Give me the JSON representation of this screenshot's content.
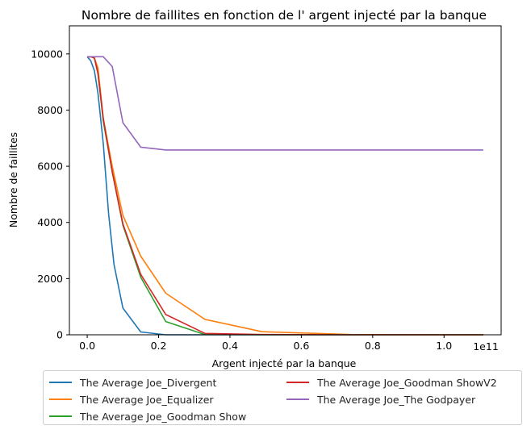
{
  "chart_data": {
    "type": "line",
    "title": "Nombre de faillites en fonction de l' argent injecté par la banque",
    "xlabel": "Argent injecté par la banque",
    "ylabel": "Nombre de faillites",
    "x_offset_label": "1e11",
    "xlim": [
      -0.05,
      1.16
    ],
    "ylim": [
      0,
      11000
    ],
    "x_ticks": [
      0.0,
      0.2,
      0.4,
      0.6,
      0.8,
      1.0
    ],
    "x_tick_labels": [
      "0.0",
      "0.2",
      "0.4",
      "0.6",
      "0.8",
      "1.0"
    ],
    "y_ticks": [
      0,
      2000,
      4000,
      6000,
      8000,
      10000
    ],
    "y_tick_labels": [
      "0",
      "2000",
      "4000",
      "6000",
      "8000",
      "10000"
    ],
    "grid": false,
    "legend_position": "below",
    "series": [
      {
        "name": "The Average Joe_Divergent",
        "color": "#1f77b4",
        "points": [
          [
            0,
            9900
          ],
          [
            0.01,
            9750
          ],
          [
            0.02,
            9400
          ],
          [
            0.03,
            8600
          ],
          [
            0.045,
            6800
          ],
          [
            0.06,
            4300
          ],
          [
            0.075,
            2500
          ],
          [
            0.1,
            950
          ],
          [
            0.15,
            100
          ],
          [
            0.22,
            0
          ],
          [
            0.33,
            0
          ],
          [
            0.49,
            0
          ],
          [
            0.74,
            0
          ],
          [
            1.11,
            0
          ]
        ]
      },
      {
        "name": "The Average Joe_Equalizer",
        "color": "#ff7f0e",
        "points": [
          [
            0,
            9900
          ],
          [
            0.01,
            9900
          ],
          [
            0.02,
            9850
          ],
          [
            0.03,
            9500
          ],
          [
            0.045,
            7700
          ],
          [
            0.07,
            6000
          ],
          [
            0.1,
            4250
          ],
          [
            0.15,
            2800
          ],
          [
            0.22,
            1480
          ],
          [
            0.33,
            550
          ],
          [
            0.49,
            110
          ],
          [
            0.74,
            10
          ],
          [
            1.11,
            0
          ]
        ]
      },
      {
        "name": "The Average Joe_Goodman Show",
        "color": "#2ca02c",
        "points": [
          [
            0,
            9900
          ],
          [
            0.01,
            9900
          ],
          [
            0.02,
            9850
          ],
          [
            0.03,
            9300
          ],
          [
            0.045,
            7600
          ],
          [
            0.07,
            5800
          ],
          [
            0.1,
            3900
          ],
          [
            0.15,
            2050
          ],
          [
            0.22,
            470
          ],
          [
            0.33,
            10
          ],
          [
            0.49,
            0
          ],
          [
            0.74,
            0
          ],
          [
            1.11,
            0
          ]
        ]
      },
      {
        "name": "The Average Joe_Goodman ShowV2",
        "color": "#d62728",
        "points": [
          [
            0,
            9900
          ],
          [
            0.01,
            9900
          ],
          [
            0.02,
            9850
          ],
          [
            0.03,
            9300
          ],
          [
            0.045,
            7700
          ],
          [
            0.07,
            5800
          ],
          [
            0.1,
            3950
          ],
          [
            0.15,
            2150
          ],
          [
            0.22,
            720
          ],
          [
            0.33,
            50
          ],
          [
            0.49,
            10
          ],
          [
            0.74,
            0
          ],
          [
            1.11,
            0
          ]
        ]
      },
      {
        "name": "The Average Joe_The Godpayer",
        "color": "#9467bd",
        "points": [
          [
            0,
            9900
          ],
          [
            0.01,
            9900
          ],
          [
            0.03,
            9900
          ],
          [
            0.045,
            9900
          ],
          [
            0.07,
            9550
          ],
          [
            0.1,
            7550
          ],
          [
            0.15,
            6680
          ],
          [
            0.22,
            6580
          ],
          [
            0.33,
            6580
          ],
          [
            0.49,
            6580
          ],
          [
            0.74,
            6580
          ],
          [
            1.11,
            6580
          ]
        ]
      }
    ]
  }
}
